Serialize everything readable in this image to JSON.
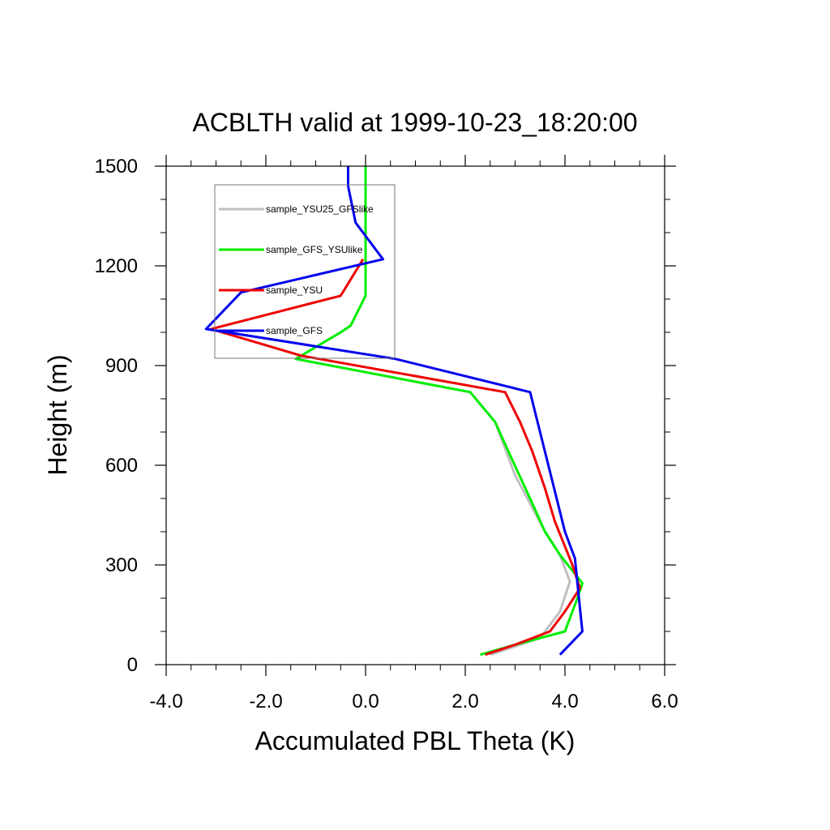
{
  "chart_data": {
    "type": "line",
    "title": "ACBLTH valid at 1999-10-23_18:20:00",
    "xlabel": "Accumulated PBL Theta (K)",
    "ylabel": "Height (m)",
    "xlim": [
      -4.0,
      6.0
    ],
    "ylim": [
      0,
      1500
    ],
    "x_ticks": [
      -4.0,
      -2.0,
      0.0,
      2.0,
      4.0,
      6.0
    ],
    "x_tick_labels": [
      "-4.0",
      "-2.0",
      "0.0",
      "2.0",
      "4.0",
      "6.0"
    ],
    "y_ticks": [
      0,
      300,
      600,
      900,
      1200,
      1500
    ],
    "y_tick_labels": [
      "0",
      "300",
      "600",
      "900",
      "1200",
      "1500"
    ],
    "grid": false,
    "legend_placement": "top-left",
    "series": [
      {
        "name": "sample_YSU25_GFSlike",
        "color": "#bfbfbf",
        "points": [
          [
            2.5,
            30
          ],
          [
            3.5,
            80
          ],
          [
            3.9,
            160
          ],
          [
            4.1,
            250
          ],
          [
            3.9,
            330
          ],
          [
            3.6,
            400
          ],
          [
            3.0,
            570
          ],
          [
            2.8,
            650
          ],
          [
            2.6,
            730
          ],
          [
            2.1,
            820
          ],
          [
            -1.4,
            920
          ],
          [
            -0.5,
            1000
          ],
          [
            -0.3,
            1020
          ],
          [
            0.0,
            1110
          ],
          [
            0.0,
            1220
          ],
          [
            0.0,
            1500
          ]
        ]
      },
      {
        "name": "sample_GFS_YSUlike",
        "color": "#00ee00",
        "points": [
          [
            2.3,
            30
          ],
          [
            3.0,
            60
          ],
          [
            4.0,
            100
          ],
          [
            4.25,
            200
          ],
          [
            4.35,
            245
          ],
          [
            3.9,
            330
          ],
          [
            3.6,
            400
          ],
          [
            3.3,
            500
          ],
          [
            2.9,
            630
          ],
          [
            2.6,
            730
          ],
          [
            2.1,
            820
          ],
          [
            -1.4,
            920
          ],
          [
            -0.5,
            1000
          ],
          [
            -0.3,
            1020
          ],
          [
            0.0,
            1110
          ],
          [
            0.0,
            1220
          ],
          [
            0.0,
            1500
          ]
        ]
      },
      {
        "name": "sample_YSU",
        "color": "#ee0000",
        "points": [
          [
            2.4,
            30
          ],
          [
            3.0,
            60
          ],
          [
            3.7,
            100
          ],
          [
            4.0,
            160
          ],
          [
            4.3,
            230
          ],
          [
            4.15,
            300
          ],
          [
            3.8,
            430
          ],
          [
            3.6,
            530
          ],
          [
            3.35,
            640
          ],
          [
            3.1,
            730
          ],
          [
            2.8,
            820
          ],
          [
            -1.3,
            930
          ],
          [
            -3.1,
            1010
          ],
          [
            -0.5,
            1110
          ],
          [
            -0.05,
            1220
          ]
        ]
      },
      {
        "name": "sample_GFS",
        "color": "#0000ee",
        "points": [
          [
            3.9,
            30
          ],
          [
            4.35,
            100
          ],
          [
            4.3,
            170
          ],
          [
            4.2,
            320
          ],
          [
            4.0,
            400
          ],
          [
            3.3,
            820
          ],
          [
            0.6,
            920
          ],
          [
            -3.2,
            1010
          ],
          [
            -2.5,
            1120
          ],
          [
            0.35,
            1220
          ],
          [
            0.0,
            1290
          ],
          [
            -0.2,
            1330
          ],
          [
            -0.35,
            1440
          ],
          [
            -0.35,
            1500
          ]
        ]
      }
    ]
  }
}
